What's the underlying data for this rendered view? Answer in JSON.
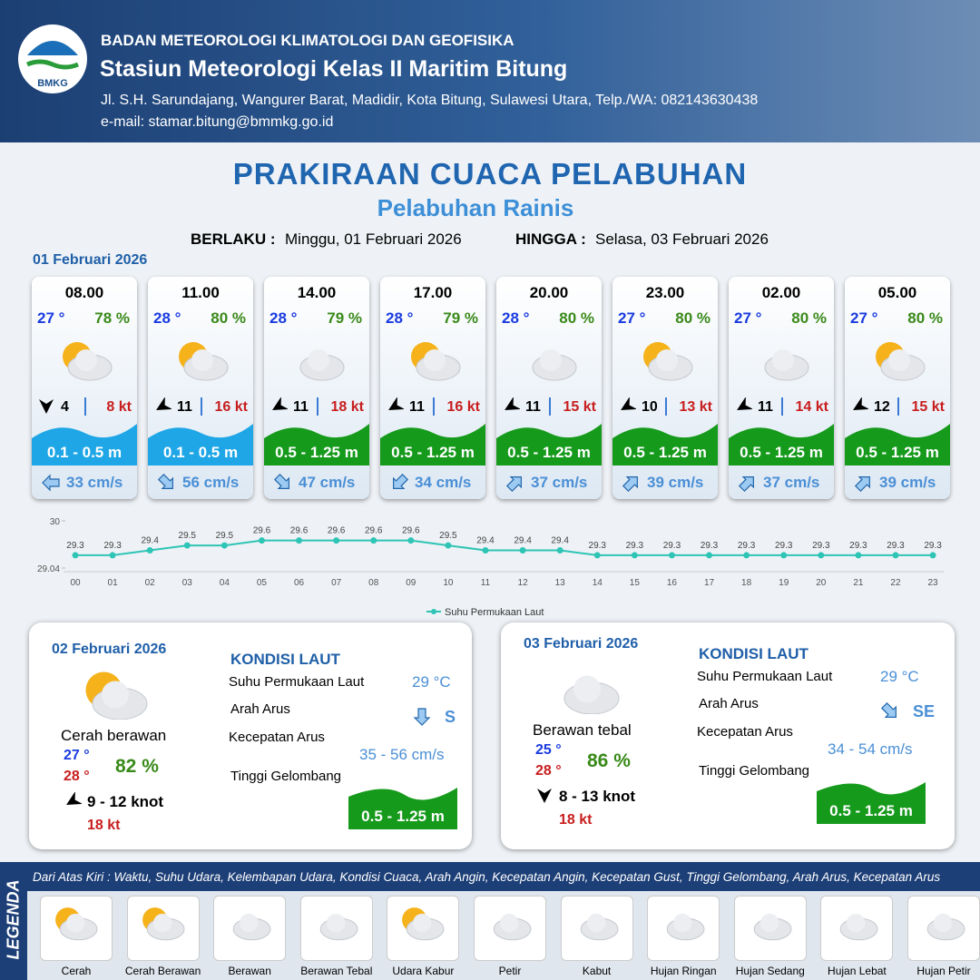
{
  "header": {
    "logo": "BMKG",
    "agency": "BADAN METEOROLOGI KLIMATOLOGI DAN GEOFISIKA",
    "station": "Stasiun Meteorologi Kelas II Maritim Bitung",
    "address": "Jl. S.H. Sarundajang, Wangurer Barat, Madidir, Kota Bitung, Sulawesi Utara, Telp./WA: 082143630438",
    "email": "e-mail: stamar.bitung@bmmkg.go.id"
  },
  "title": "PRAKIRAAN CUACA PELABUHAN",
  "subtitle": "Pelabuhan Rainis",
  "validity": {
    "from_label": "BERLAKU :",
    "from": "Minggu, 01 Februari 2026",
    "to_label": "HINGGA :",
    "to": "Selasa, 03 Februari 2026"
  },
  "day1": {
    "date": "01 Februari 2026",
    "slots": [
      {
        "time": "08.00",
        "temp": "27 °",
        "humidity": "78 %",
        "wind": "4",
        "gust": "8 kt",
        "wave": "0.1 - 0.5 m",
        "wave_color": "#1ea6e6",
        "current": "33 cm/s"
      },
      {
        "time": "11.00",
        "temp": "28 °",
        "humidity": "80 %",
        "wind": "11",
        "gust": "16 kt",
        "wave": "0.1 - 0.5 m",
        "wave_color": "#1ea6e6",
        "current": "56 cm/s"
      },
      {
        "time": "14.00",
        "temp": "28 °",
        "humidity": "79 %",
        "wind": "11",
        "gust": "18 kt",
        "wave": "0.5 - 1.25 m",
        "wave_color": "#169a1c",
        "current": "47 cm/s"
      },
      {
        "time": "17.00",
        "temp": "28 °",
        "humidity": "79 %",
        "wind": "11",
        "gust": "16 kt",
        "wave": "0.5 - 1.25 m",
        "wave_color": "#169a1c",
        "current": "34 cm/s"
      },
      {
        "time": "20.00",
        "temp": "28 °",
        "humidity": "80 %",
        "wind": "11",
        "gust": "15 kt",
        "wave": "0.5 - 1.25 m",
        "wave_color": "#169a1c",
        "current": "37 cm/s"
      },
      {
        "time": "23.00",
        "temp": "27 °",
        "humidity": "80 %",
        "wind": "10",
        "gust": "13 kt",
        "wave": "0.5 - 1.25 m",
        "wave_color": "#169a1c",
        "current": "39 cm/s"
      },
      {
        "time": "02.00",
        "temp": "27 °",
        "humidity": "80 %",
        "wind": "11",
        "gust": "14 kt",
        "wave": "0.5 - 1.25 m",
        "wave_color": "#169a1c",
        "current": "37 cm/s"
      },
      {
        "time": "05.00",
        "temp": "27 °",
        "humidity": "80 %",
        "wind": "12",
        "gust": "15 kt",
        "wave": "0.5 - 1.25 m",
        "wave_color": "#169a1c",
        "current": "39 cm/s"
      }
    ]
  },
  "sst_chart": {
    "type": "line",
    "legend": "Suhu Permukaan Laut",
    "color": "#2ec4b6",
    "categories": [
      "00",
      "01",
      "02",
      "03",
      "04",
      "05",
      "06",
      "07",
      "08",
      "09",
      "10",
      "11",
      "12",
      "13",
      "14",
      "15",
      "16",
      "17",
      "18",
      "19",
      "20",
      "21",
      "22",
      "23"
    ],
    "values": [
      29.3,
      29.3,
      29.4,
      29.5,
      29.5,
      29.6,
      29.6,
      29.6,
      29.6,
      29.6,
      29.5,
      29.4,
      29.4,
      29.4,
      29.3,
      29.3,
      29.3,
      29.3,
      29.3,
      29.3,
      29.3,
      29.3,
      29.3,
      29.3
    ],
    "ylim": [
      29.04,
      30
    ],
    "yticks": [
      29.04,
      30
    ]
  },
  "days": [
    {
      "date": "02 Februari 2026",
      "condition": "Cerah berawan",
      "temp_min": "27 °",
      "temp_max": "28 °",
      "humidity": "82 %",
      "wind": "9  - 12 knot",
      "gust": "18 kt",
      "sea_title": "KONDISI LAUT",
      "sst_label": "Suhu Permukaan Laut",
      "sst": "29 °C",
      "dir_label": "Arah Arus",
      "dir": "S",
      "speed_label": "Kecepatan Arus",
      "speed": "35 - 56 cm/s",
      "wave_label": "Tinggi Gelombang",
      "wave": "0.5 - 1.25 m"
    },
    {
      "date": "03 Februari 2026",
      "condition": "Berawan tebal",
      "temp_min": "25 °",
      "temp_max": "28 °",
      "humidity": "86 %",
      "wind": "8  - 13 knot",
      "gust": "18 kt",
      "sea_title": "KONDISI LAUT",
      "sst_label": "Suhu Permukaan Laut",
      "sst": "29 °C",
      "dir_label": "Arah Arus",
      "dir": "SE",
      "speed_label": "Kecepatan Arus",
      "speed": "34 - 54 cm/s",
      "wave_label": "Tinggi Gelombang",
      "wave": "0.5 - 1.25 m"
    }
  ],
  "legend": {
    "title": "LEGENDA",
    "description": "Dari Atas Kiri : Waktu, Suhu Udara, Kelembapan Udara, Kondisi Cuaca, Arah Angin, Kecepatan Angin, Kecepatan Gust, Tinggi Gelombang, Arah Arus, Kecepatan Arus",
    "items": [
      "Cerah",
      "Cerah Berawan",
      "Berawan",
      "Berawan Tebal",
      "Udara Kabur",
      "Petir",
      "Kabut",
      "Hujan Ringan",
      "Hujan Sedang",
      "Hujan Lebat",
      "Hujan Petir"
    ]
  }
}
